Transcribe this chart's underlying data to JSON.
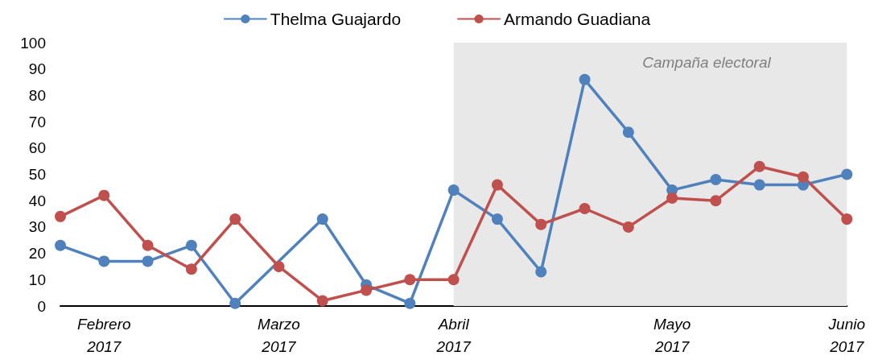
{
  "chart_data": {
    "type": "line",
    "categories": [
      null,
      "Febrero 2017",
      null,
      null,
      null,
      "Marzo 2017",
      null,
      null,
      null,
      "Abril 2017",
      null,
      null,
      null,
      null,
      "Mayo 2017",
      null,
      null,
      null,
      "Junio 2017"
    ],
    "series": [
      {
        "name": "Thelma Guajardo",
        "color": "#4f81bd",
        "values": [
          23,
          17,
          17,
          23,
          1,
          null,
          33,
          8,
          1,
          44,
          33,
          13,
          86,
          66,
          44,
          48,
          46,
          46,
          50
        ]
      },
      {
        "name": "Armando Guadiana",
        "color": "#c0504d",
        "values": [
          34,
          42,
          23,
          14,
          33,
          15,
          2,
          6,
          10,
          10,
          46,
          31,
          37,
          30,
          41,
          40,
          53,
          49,
          33
        ]
      }
    ],
    "ylim": [
      0,
      100
    ],
    "yticks": [
      0,
      10,
      20,
      30,
      40,
      50,
      60,
      70,
      80,
      90,
      100
    ],
    "bands": [
      {
        "axis": "x",
        "from": "Abril 2017",
        "to": "Junio 2017",
        "label": "Campaña electoral",
        "color": "#e8e8e8"
      }
    ],
    "grid": false,
    "legend": "top",
    "marker": "circle",
    "line_style": "solid"
  }
}
